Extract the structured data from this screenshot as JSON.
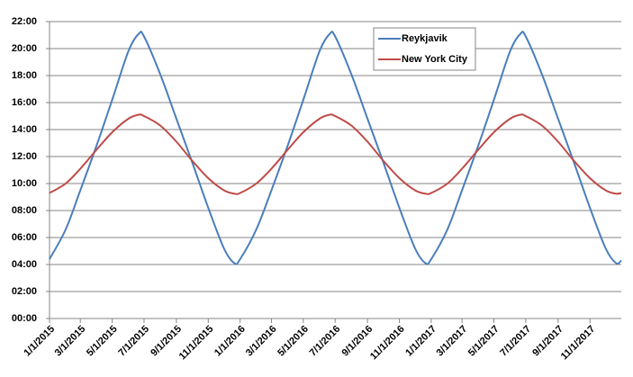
{
  "chart_data": {
    "type": "line",
    "x": [
      "1/1/2015",
      "2/1/2015",
      "3/1/2015",
      "4/1/2015",
      "5/1/2015",
      "6/1/2015",
      "6/21/2015",
      "7/1/2015",
      "8/1/2015",
      "9/1/2015",
      "10/1/2015",
      "11/1/2015",
      "12/1/2015",
      "12/21/2015",
      "1/1/2016",
      "2/1/2016",
      "3/1/2016",
      "4/1/2016",
      "5/1/2016",
      "6/1/2016",
      "6/21/2016",
      "7/1/2016",
      "8/1/2016",
      "9/1/2016",
      "10/1/2016",
      "11/1/2016",
      "12/1/2016",
      "12/21/2016",
      "1/1/2017",
      "2/1/2017",
      "3/1/2017",
      "4/1/2017",
      "5/1/2017",
      "6/1/2017",
      "6/21/2017",
      "7/1/2017",
      "8/1/2017",
      "9/1/2017",
      "10/1/2017",
      "11/1/2017",
      "12/1/2017",
      "12/21/2017",
      "12/31/2017"
    ],
    "series": [
      {
        "name": "Reykjavik",
        "color": "#4a7ebb",
        "values": [
          4.4,
          6.6,
          9.5,
          12.8,
          16.2,
          19.8,
          21.1,
          20.9,
          18.1,
          14.8,
          11.6,
          8.2,
          5.2,
          4.1,
          4.4,
          6.6,
          9.5,
          12.8,
          16.2,
          19.8,
          21.1,
          20.9,
          18.1,
          14.8,
          11.6,
          8.2,
          5.2,
          4.1,
          4.4,
          6.6,
          9.5,
          12.8,
          16.2,
          19.8,
          21.1,
          20.9,
          18.1,
          14.8,
          11.6,
          8.2,
          5.2,
          4.1,
          4.3
        ]
      },
      {
        "name": "New York City",
        "color": "#be4b48",
        "values": [
          9.3,
          10.0,
          11.1,
          12.5,
          13.8,
          14.8,
          15.1,
          15.0,
          14.3,
          13.1,
          11.7,
          10.4,
          9.5,
          9.25,
          9.3,
          10.0,
          11.1,
          12.5,
          13.8,
          14.8,
          15.1,
          15.0,
          14.3,
          13.1,
          11.7,
          10.4,
          9.5,
          9.25,
          9.3,
          10.0,
          11.1,
          12.5,
          13.8,
          14.8,
          15.1,
          15.0,
          14.3,
          13.1,
          11.7,
          10.4,
          9.5,
          9.25,
          9.3
        ]
      }
    ],
    "xlim": [
      "1/1/2015",
      "12/31/2017"
    ],
    "xticks": [
      "1/1/2015",
      "3/1/2015",
      "5/1/2015",
      "7/1/2015",
      "9/1/2015",
      "11/1/2015",
      "1/1/2016",
      "3/1/2016",
      "5/1/2016",
      "7/1/2016",
      "9/1/2016",
      "11/1/2016",
      "1/1/2017",
      "3/1/2017",
      "5/1/2017",
      "7/1/2017",
      "9/1/2017",
      "11/1/2017"
    ],
    "ylim": [
      0,
      22
    ],
    "yticks": [
      {
        "value": 0,
        "label": "00:00"
      },
      {
        "value": 2,
        "label": "02:00"
      },
      {
        "value": 4,
        "label": "04:00"
      },
      {
        "value": 6,
        "label": "06:00"
      },
      {
        "value": 8,
        "label": "08:00"
      },
      {
        "value": 10,
        "label": "10:00"
      },
      {
        "value": 12,
        "label": "12:00"
      },
      {
        "value": 14,
        "label": "14:00"
      },
      {
        "value": 16,
        "label": "16:00"
      },
      {
        "value": 18,
        "label": "18:00"
      },
      {
        "value": 20,
        "label": "20:00"
      },
      {
        "value": 22,
        "label": "22:00"
      }
    ],
    "grid": true,
    "legend": "top-right"
  }
}
